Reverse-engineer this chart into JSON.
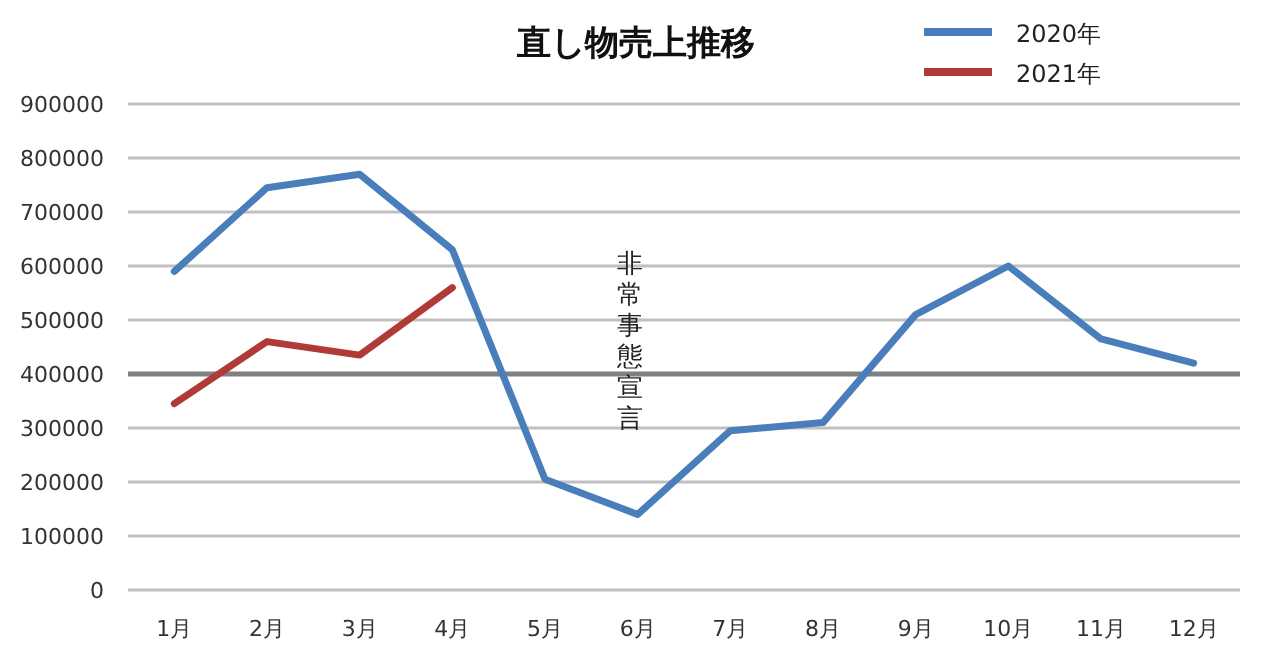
{
  "chart_data": {
    "type": "line",
    "title": "直し物売上推移",
    "categories": [
      "1月",
      "2月",
      "3月",
      "4月",
      "5月",
      "6月",
      "7月",
      "8月",
      "9月",
      "10月",
      "11月",
      "12月"
    ],
    "series": [
      {
        "name": "2020年",
        "color": "#4a7ebb",
        "values": [
          590000,
          745000,
          770000,
          630000,
          205000,
          140000,
          295000,
          310000,
          510000,
          600000,
          465000,
          420000
        ]
      },
      {
        "name": "2021年",
        "color": "#b03a36",
        "values": [
          345000,
          460000,
          435000,
          560000,
          null,
          null,
          null,
          null,
          null,
          null,
          null,
          null
        ]
      }
    ],
    "ylim": [
      0,
      900000
    ],
    "yticks": [
      0,
      100000,
      200000,
      300000,
      400000,
      500000,
      600000,
      700000,
      800000,
      900000
    ],
    "grid": "y",
    "legend": "top right",
    "marker": "none",
    "line_style": "solid",
    "ref_lines": [
      {
        "axis": "y",
        "value": 400000,
        "color": "#808080"
      }
    ],
    "annotations": [
      "非常事態宣言"
    ]
  }
}
